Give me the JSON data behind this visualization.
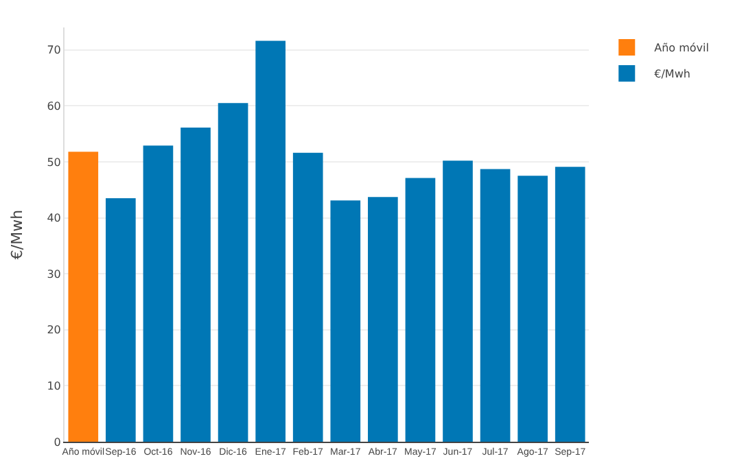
{
  "chart_data": {
    "type": "bar",
    "ylabel": "€/Mwh",
    "categories": [
      "Año móvil",
      "Sep-16",
      "Oct-16",
      "Nov-16",
      "Dic-16",
      "Ene-17",
      "Feb-17",
      "Mar-17",
      "Abr-17",
      "May-17",
      "Jun-17",
      "Jul-17",
      "Ago-17",
      "Sep-17"
    ],
    "series": [
      {
        "name": "Año móvil",
        "color": "#ff7f0e",
        "values": [
          51.8,
          null,
          null,
          null,
          null,
          null,
          null,
          null,
          null,
          null,
          null,
          null,
          null,
          null
        ]
      },
      {
        "name": "€/Mwh",
        "color": "#0077b5",
        "values": [
          null,
          43.5,
          52.9,
          56.1,
          60.5,
          71.6,
          51.6,
          43.1,
          43.7,
          47.1,
          50.2,
          48.7,
          47.5,
          49.1
        ]
      }
    ],
    "ylim": [
      0,
      74
    ],
    "yticks": [
      0,
      10,
      20,
      30,
      40,
      50,
      60,
      70
    ],
    "grid": "y",
    "legend": "top right"
  }
}
